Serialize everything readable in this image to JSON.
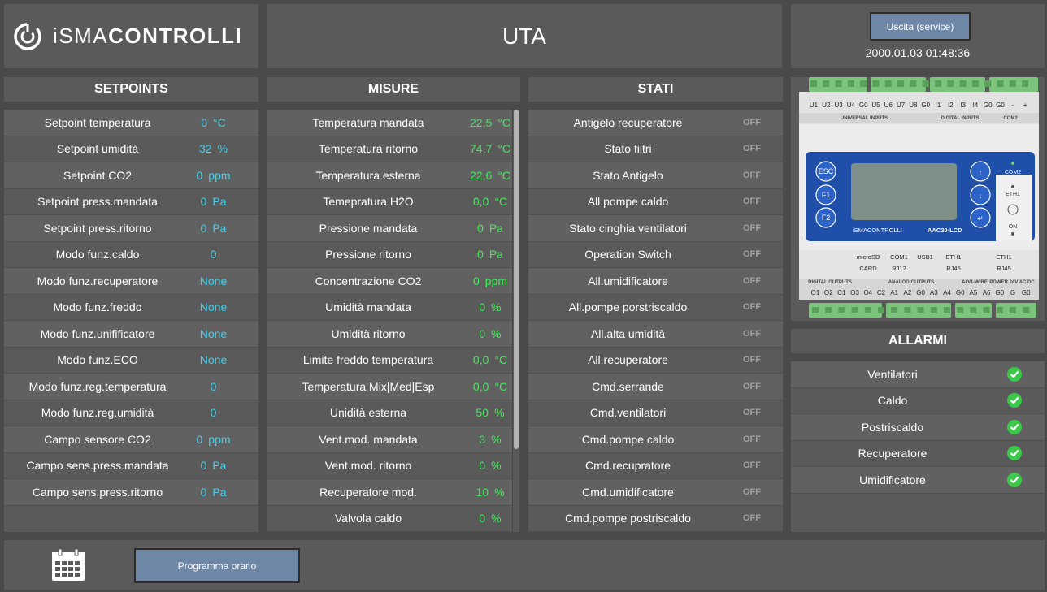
{
  "header": {
    "logo_prefix": "iSMA",
    "logo_suffix": "CONTROLLI",
    "title": "UTA",
    "exit_label": "Uscita (service)",
    "datetime": "2000.01.03 01:48:36"
  },
  "setpoints": {
    "title": "SETPOINTS",
    "rows": [
      {
        "label": "Setpoint temperatura",
        "value": "0",
        "unit": "°C"
      },
      {
        "label": "Setpoint umidità",
        "value": "32",
        "unit": "%"
      },
      {
        "label": "Setpoint CO2",
        "value": "0",
        "unit": "ppm"
      },
      {
        "label": "Setpoint press.mandata",
        "value": "0",
        "unit": "Pa"
      },
      {
        "label": "Setpoint press.ritorno",
        "value": "0",
        "unit": "Pa"
      },
      {
        "label": "Modo funz.caldo",
        "value": "0",
        "unit": ""
      },
      {
        "label": "Modo funz.recuperatore",
        "value": "None",
        "unit": ""
      },
      {
        "label": "Modo funz.freddo",
        "value": "None",
        "unit": ""
      },
      {
        "label": "Modo funz.unifificatore",
        "value": "None",
        "unit": ""
      },
      {
        "label": "Modo funz.ECO",
        "value": "None",
        "unit": ""
      },
      {
        "label": "Modo funz.reg.temperatura",
        "value": "0",
        "unit": ""
      },
      {
        "label": "Modo funz.reg.umidità",
        "value": "0",
        "unit": ""
      },
      {
        "label": "Campo sensore CO2",
        "value": "0",
        "unit": "ppm"
      },
      {
        "label": "Campo sens.press.mandata",
        "value": "0",
        "unit": "Pa"
      },
      {
        "label": "Campo sens.press.ritorno",
        "value": "0",
        "unit": "Pa"
      }
    ]
  },
  "misure": {
    "title": "MISURE",
    "rows": [
      {
        "label": "Temperatura mandata",
        "value": "22,5",
        "unit": "°C"
      },
      {
        "label": "Temperatura ritorno",
        "value": "74,7",
        "unit": "°C"
      },
      {
        "label": "Temperatura esterna",
        "value": "22,6",
        "unit": "°C"
      },
      {
        "label": "Temepratura H2O",
        "value": "0,0",
        "unit": "°C"
      },
      {
        "label": "Pressione mandata",
        "value": "0",
        "unit": "Pa"
      },
      {
        "label": "Pressione ritorno",
        "value": "0",
        "unit": "Pa"
      },
      {
        "label": "Concentrazione CO2",
        "value": "0",
        "unit": "ppm"
      },
      {
        "label": "Umidità mandata",
        "value": "0",
        "unit": "%"
      },
      {
        "label": "Umidità ritorno",
        "value": "0",
        "unit": "%"
      },
      {
        "label": "Limite freddo temperatura",
        "value": "0,0",
        "unit": "°C"
      },
      {
        "label": "Temperatura Mix|Med|Esp",
        "value": "0,0",
        "unit": "°C"
      },
      {
        "label": "Unidità esterna",
        "value": "50",
        "unit": "%"
      },
      {
        "label": "Vent.mod. mandata",
        "value": "3",
        "unit": "%"
      },
      {
        "label": "Vent.mod. ritorno",
        "value": "0",
        "unit": "%"
      },
      {
        "label": "Recuperatore mod.",
        "value": "10",
        "unit": "%"
      },
      {
        "label": "Valvola caldo",
        "value": "0",
        "unit": "%"
      }
    ]
  },
  "stati": {
    "title": "STATI",
    "rows": [
      {
        "label": "Antigelo recuperatore",
        "value": "OFF"
      },
      {
        "label": "Stato filtri",
        "value": "OFF"
      },
      {
        "label": "Stato Antigelo",
        "value": "OFF"
      },
      {
        "label": "All.pompe caldo",
        "value": "OFF"
      },
      {
        "label": "Stato cinghia ventilatori",
        "value": "OFF"
      },
      {
        "label": "Operation Switch",
        "value": "OFF"
      },
      {
        "label": "All.umidificatore",
        "value": "OFF"
      },
      {
        "label": "All.pompe porstriscaldo",
        "value": "OFF"
      },
      {
        "label": "All.alta umidità",
        "value": "OFF"
      },
      {
        "label": "All.recuperatore",
        "value": "OFF"
      },
      {
        "label": "Cmd.serrande",
        "value": "OFF"
      },
      {
        "label": "Cmd.ventilatori",
        "value": "OFF"
      },
      {
        "label": "Cmd.pompe caldo",
        "value": "OFF"
      },
      {
        "label": "Cmd.recupratore",
        "value": "OFF"
      },
      {
        "label": "Cmd.umidificatore",
        "value": "OFF"
      },
      {
        "label": "Cmd.pompe postriscaldo",
        "value": "OFF"
      }
    ]
  },
  "allarmi": {
    "title": "ALLARMI",
    "rows": [
      {
        "label": "Ventilatori",
        "status": "ok"
      },
      {
        "label": "Caldo",
        "status": "ok"
      },
      {
        "label": "Postriscaldo",
        "status": "ok"
      },
      {
        "label": "Recuperatore",
        "status": "ok"
      },
      {
        "label": "Umidificatore",
        "status": "ok"
      }
    ]
  },
  "device": {
    "model": "AAC20-LCD",
    "brand": "iSMACONTROLLI",
    "top_terminals": [
      "U1",
      "U2",
      "U3",
      "U4",
      "G0",
      "U5",
      "U6",
      "U7",
      "U8",
      "G0",
      "I1",
      "I2",
      "I3",
      "I4",
      "G0",
      "G0",
      "-",
      "+"
    ],
    "top_groups": [
      "UNIVERSAL INPUTS",
      "DIGITAL INPUTS",
      "COM2"
    ],
    "buttons": [
      "ESC",
      "F1",
      "F2",
      "↑",
      "↓",
      "↵"
    ],
    "side_labels": [
      "COM2",
      "ETH1",
      "ON"
    ],
    "ports": [
      [
        "microSD",
        "CARD"
      ],
      [
        "COM1",
        "RJ12"
      ],
      [
        "USB1",
        ""
      ],
      [
        "ETH1",
        "RJ45"
      ],
      [
        "ETH1",
        "RJ45"
      ]
    ],
    "bottom_groups": [
      "DIGITAL OUTPUTS",
      "ANALOG OUTPUTS",
      "AO/1-WIRE",
      "POWER 24V AC/DC"
    ],
    "bottom_terminals": [
      "O1",
      "O2",
      "C1",
      "O3",
      "O4",
      "C2",
      "A1",
      "A2",
      "G0",
      "A3",
      "A4",
      "G0",
      "A5",
      "A6",
      "G0",
      "G",
      "G0"
    ]
  },
  "bottom": {
    "program_label": "Programma orario"
  },
  "colors": {
    "setpoint_value": "#3fd0ef",
    "measure_value": "#44e85c",
    "state_off": "#a0a0a0",
    "alarm_ok": "#3cc94a",
    "button_bg": "#6f87a7"
  }
}
